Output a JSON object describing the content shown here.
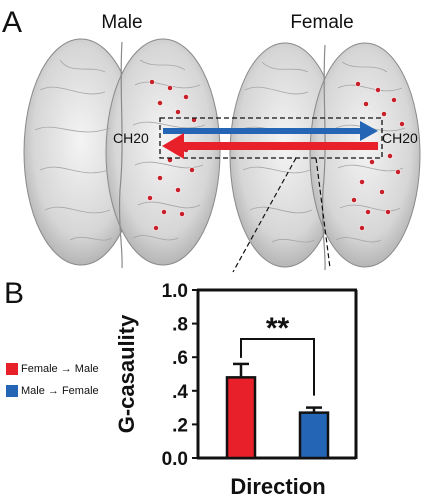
{
  "panel_a": {
    "label": "A",
    "left_title": "Male",
    "right_title": "Female",
    "channel_left": "CH20",
    "channel_right": "CH20",
    "colors": {
      "red": "#e8202a",
      "blue": "#2565b5",
      "electrode": "#c8202a",
      "brain": "#d9d9d9"
    }
  },
  "panel_b": {
    "label": "B"
  },
  "chart_data": {
    "type": "bar",
    "categories": [
      "Female → Male",
      "Male → Female"
    ],
    "values": [
      0.48,
      0.27
    ],
    "errors": [
      0.08,
      0.03
    ],
    "colors": [
      "#e8202a",
      "#2565b5"
    ],
    "title": "",
    "xlabel": "Direction",
    "ylabel": "G-casaulity",
    "ylim": [
      0,
      1.0
    ],
    "yticks": [
      0,
      0.2,
      0.4,
      0.6,
      0.8,
      1.0
    ],
    "ytick_labels": [
      "0.0",
      ".2",
      ".4",
      ".6",
      ".8",
      "1.0"
    ],
    "significance": "**",
    "legend": [
      {
        "label": "Female → Male",
        "color": "#e8202a"
      },
      {
        "label": "Male → Female",
        "color": "#2565b5"
      }
    ]
  }
}
